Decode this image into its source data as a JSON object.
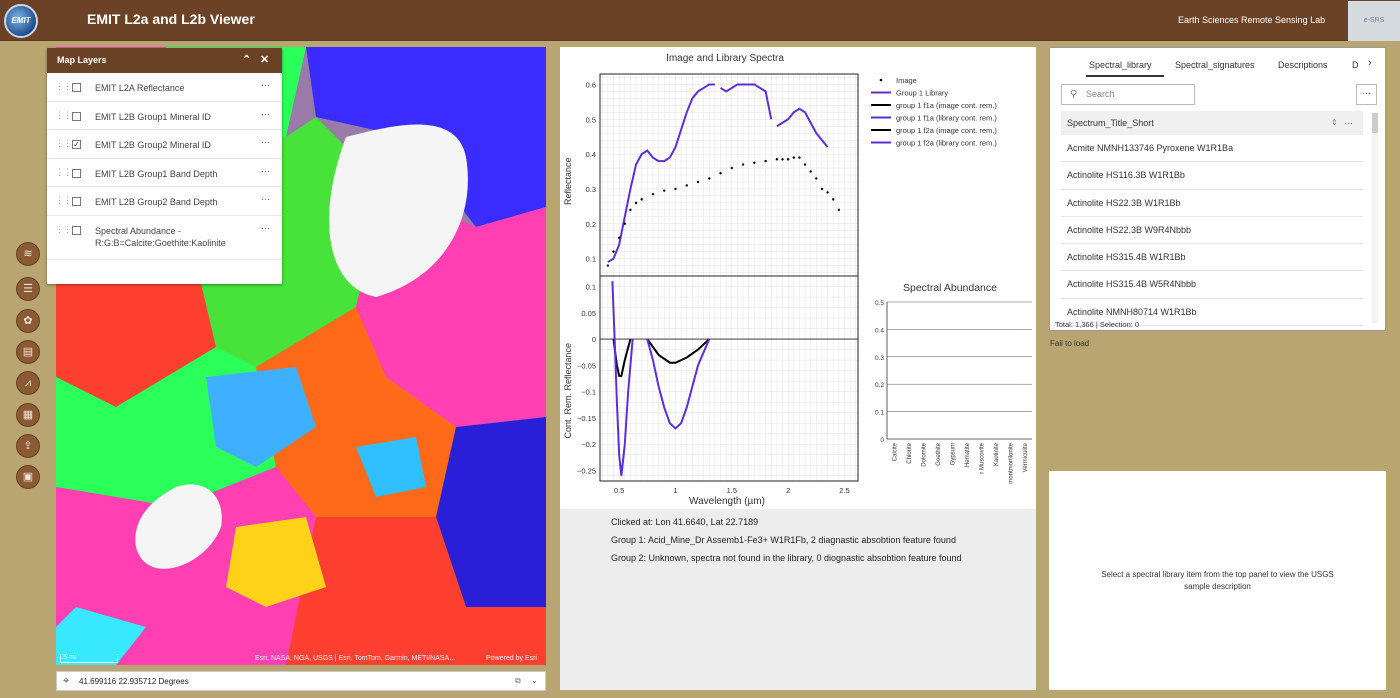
{
  "app": {
    "title": "EMIT L2a and L2b Viewer",
    "logo_text": "EMIT",
    "lab_name": "Earth Sciences Remote Sensing Lab",
    "lab_logo_text": "e-SRS"
  },
  "map": {
    "scale_text": "5 mi",
    "attribution": "Esri, NASA, NGA, USGS | Esri, TomTom, Garmin, METI/NASA...",
    "powered_by": "Powered by Esri",
    "coordinates": "41.699116 22.935712 Degrees"
  },
  "toolbar": {
    "icons": [
      "layers-icon",
      "list-icon",
      "basemap-icon",
      "table-icon",
      "chart-icon",
      "grid-icon",
      "share-icon",
      "print-icon"
    ]
  },
  "layers_panel": {
    "title": "Map Layers",
    "layers": [
      {
        "name": "EMIT L2A Reflectance",
        "checked": false
      },
      {
        "name": "EMIT L2B Group1 Mineral ID",
        "checked": false
      },
      {
        "name": "EMIT L2B Group2 Mineral ID",
        "checked": true
      },
      {
        "name": "EMIT L2B Group1 Band Depth",
        "checked": false
      },
      {
        "name": "EMIT L2B Group2 Band Depth",
        "checked": false
      },
      {
        "name": "Spectral Abundance - R:G:B=Calcite:Goethite:Kaolinite",
        "checked": false
      }
    ]
  },
  "spectra_chart": {
    "title": "Image and Library Spectra",
    "xlabel": "Wavelength (µm)",
    "ylabel_top": "Reflectance",
    "ylabel_bottom": "Cont. Rem. Reflectance",
    "x_ticks": [
      "0.5",
      "1",
      "1.5",
      "2",
      "2.5"
    ],
    "y_ticks_top": [
      "0.6",
      "0.5",
      "0.4",
      "0.3",
      "0.2",
      "0.1"
    ],
    "y_ticks_bottom": [
      "0.1",
      "0.05",
      "0",
      "−0.05",
      "−0.1",
      "−0.15",
      "−0.2",
      "−0.25"
    ],
    "legend": [
      {
        "label": "Image",
        "color": "#000000",
        "style": "dot"
      },
      {
        "label": "Group 1 Library",
        "color": "#5a2fd6",
        "style": "line"
      },
      {
        "label": "group 1 f1a (image cont. rem.)",
        "color": "#000000",
        "style": "line"
      },
      {
        "label": "group 1 f1a (library cont. rem.)",
        "color": "#5a2fd6",
        "style": "line"
      },
      {
        "label": "group 1 f2a (image cont. rem.)",
        "color": "#000000",
        "style": "line"
      },
      {
        "label": "group 1 f2a (library cont. rem.)",
        "color": "#5a2fd6",
        "style": "line"
      }
    ]
  },
  "abundance_chart": {
    "title": "Spectral Abundance",
    "y_ticks": [
      "0.5",
      "0.4",
      "0.3",
      "0.2",
      "0.1",
      "0"
    ],
    "categories": [
      "Calcite",
      "Chlorite",
      "Dolomite",
      "Goethite",
      "Gypsum",
      "Hematite",
      "Muscovite",
      "Kaolinite",
      "Montmorillonite",
      "Vermiculite"
    ],
    "category_labels": [
      "Calcite",
      "Chlorite",
      "Dolomite",
      "Goethite",
      "Gypsum",
      "Hematite",
      "r Muscovite",
      "Kaolinite",
      "montmorillonite",
      "Vermiculite"
    ]
  },
  "chart_data": [
    {
      "type": "line",
      "title": "Image and Library Spectra",
      "xlabel": "Wavelength (µm)",
      "ylabel": "Reflectance",
      "xlim": [
        0.33,
        2.62
      ],
      "ylim": [
        0.05,
        0.63
      ],
      "series": [
        {
          "name": "Image",
          "x": [
            0.4,
            0.45,
            0.5,
            0.55,
            0.6,
            0.65,
            0.7,
            0.8,
            0.9,
            1.0,
            1.1,
            1.2,
            1.3,
            1.4,
            1.5,
            1.6,
            1.7,
            1.8,
            1.9,
            1.95,
            2.0,
            2.05,
            2.1,
            2.15,
            2.2,
            2.25,
            2.3,
            2.35,
            2.4,
            2.45
          ],
          "y": [
            0.08,
            0.12,
            0.16,
            0.2,
            0.24,
            0.26,
            0.27,
            0.285,
            0.295,
            0.3,
            0.31,
            0.32,
            0.33,
            0.345,
            0.36,
            0.37,
            0.375,
            0.38,
            0.385,
            0.385,
            0.385,
            0.39,
            0.39,
            0.37,
            0.35,
            0.33,
            0.3,
            0.29,
            0.27,
            0.24
          ]
        },
        {
          "name": "Group 1 Library",
          "x": [
            0.4,
            0.45,
            0.5,
            0.55,
            0.6,
            0.65,
            0.7,
            0.75,
            0.8,
            0.85,
            0.9,
            0.95,
            1.0,
            1.05,
            1.1,
            1.15,
            1.2,
            1.25,
            1.3,
            1.35,
            1.4,
            1.45,
            1.5,
            1.55,
            1.6,
            1.65,
            1.7,
            1.75,
            1.8,
            1.85,
            1.9,
            1.95,
            2.0,
            2.05,
            2.1,
            2.15,
            2.2,
            2.25,
            2.3,
            2.35
          ],
          "y": [
            0.09,
            0.1,
            0.14,
            0.22,
            0.3,
            0.37,
            0.4,
            0.41,
            0.39,
            0.38,
            0.38,
            0.39,
            0.42,
            0.47,
            0.52,
            0.56,
            0.58,
            0.59,
            0.6,
            0.6,
            0.59,
            0.58,
            0.59,
            0.6,
            0.6,
            0.6,
            0.6,
            0.59,
            0.58,
            0.5,
            0.48,
            0.49,
            0.5,
            0.52,
            0.53,
            0.52,
            0.49,
            0.46,
            0.44,
            0.42
          ]
        }
      ]
    },
    {
      "type": "line",
      "xlabel": "Wavelength (µm)",
      "ylabel": "Cont. Rem. Reflectance",
      "xlim": [
        0.33,
        2.62
      ],
      "ylim": [
        -0.27,
        0.12
      ],
      "series": [
        {
          "name": "group 1 f1a (image cont. rem.)",
          "x": [
            0.45,
            0.48,
            0.5,
            0.52,
            0.55,
            0.6
          ],
          "y": [
            0.0,
            -0.05,
            -0.07,
            -0.07,
            -0.04,
            0.0
          ]
        },
        {
          "name": "group 1 f1a (library cont. rem.)",
          "x": [
            0.44,
            0.46,
            0.48,
            0.5,
            0.52,
            0.55,
            0.58,
            0.62
          ],
          "y": [
            0.11,
            0.0,
            -0.12,
            -0.22,
            -0.26,
            -0.2,
            -0.1,
            0.0
          ]
        },
        {
          "name": "group 1 f2a (image cont. rem.)",
          "x": [
            0.75,
            0.85,
            0.95,
            1.0,
            1.05,
            1.1,
            1.2,
            1.3
          ],
          "y": [
            0.0,
            -0.03,
            -0.045,
            -0.045,
            -0.04,
            -0.035,
            -0.02,
            0.0
          ]
        },
        {
          "name": "group 1 f2a (library cont. rem.)",
          "x": [
            0.75,
            0.8,
            0.85,
            0.9,
            0.95,
            1.0,
            1.05,
            1.1,
            1.15,
            1.2,
            1.3
          ],
          "y": [
            0.0,
            -0.04,
            -0.09,
            -0.13,
            -0.16,
            -0.17,
            -0.16,
            -0.13,
            -0.09,
            -0.05,
            0.0
          ]
        }
      ]
    },
    {
      "type": "bar",
      "title": "Spectral Abundance",
      "categories": [
        "Calcite",
        "Chlorite",
        "Dolomite",
        "Goethite",
        "Gypsum",
        "Hematite",
        "Muscovite",
        "Kaolinite",
        "Montmorillonite",
        "Vermiculite"
      ],
      "values": [
        0,
        0,
        0,
        0,
        0,
        0,
        0,
        0,
        0,
        0
      ],
      "ylim": [
        0,
        0.5
      ]
    }
  ],
  "info": {
    "clicked": "Clicked at: Lon 41.6640, Lat 22.7189",
    "group1": "Group 1: Acid_Mine_Dr Assemb1-Fe3+ W1R1Fb, 2 diagnastic absobtion feature found",
    "group2": "Group 2: Unknown, spectra not found in the library, 0 diognastic absobtion feature found"
  },
  "library_panel": {
    "tabs": [
      "Spectral_library",
      "Spectral_signatures",
      "Descriptions",
      "D"
    ],
    "search_placeholder": "Search",
    "column_header": "Spectrum_Title_Short",
    "rows": [
      "Acmite NMNH133746 Pyroxene W1R1Ba",
      "Actinolite HS116.3B W1R1Bb",
      "Actinolite HS22.3B W1R1Bb",
      "Actinolite HS22.3B W9R4Nbbb",
      "Actinolite HS315.4B W1R1Bb",
      "Actinolite HS315.4B W5R4Nbbb",
      "Actinolite NMNH80714 W1R1Bb"
    ],
    "footer": "Total: 1,366 | Selection: 0"
  },
  "status": {
    "fail": "Fail to load"
  },
  "description_panel": {
    "text": "Select a spectral library item from the top panel to view the USGS sample description"
  }
}
